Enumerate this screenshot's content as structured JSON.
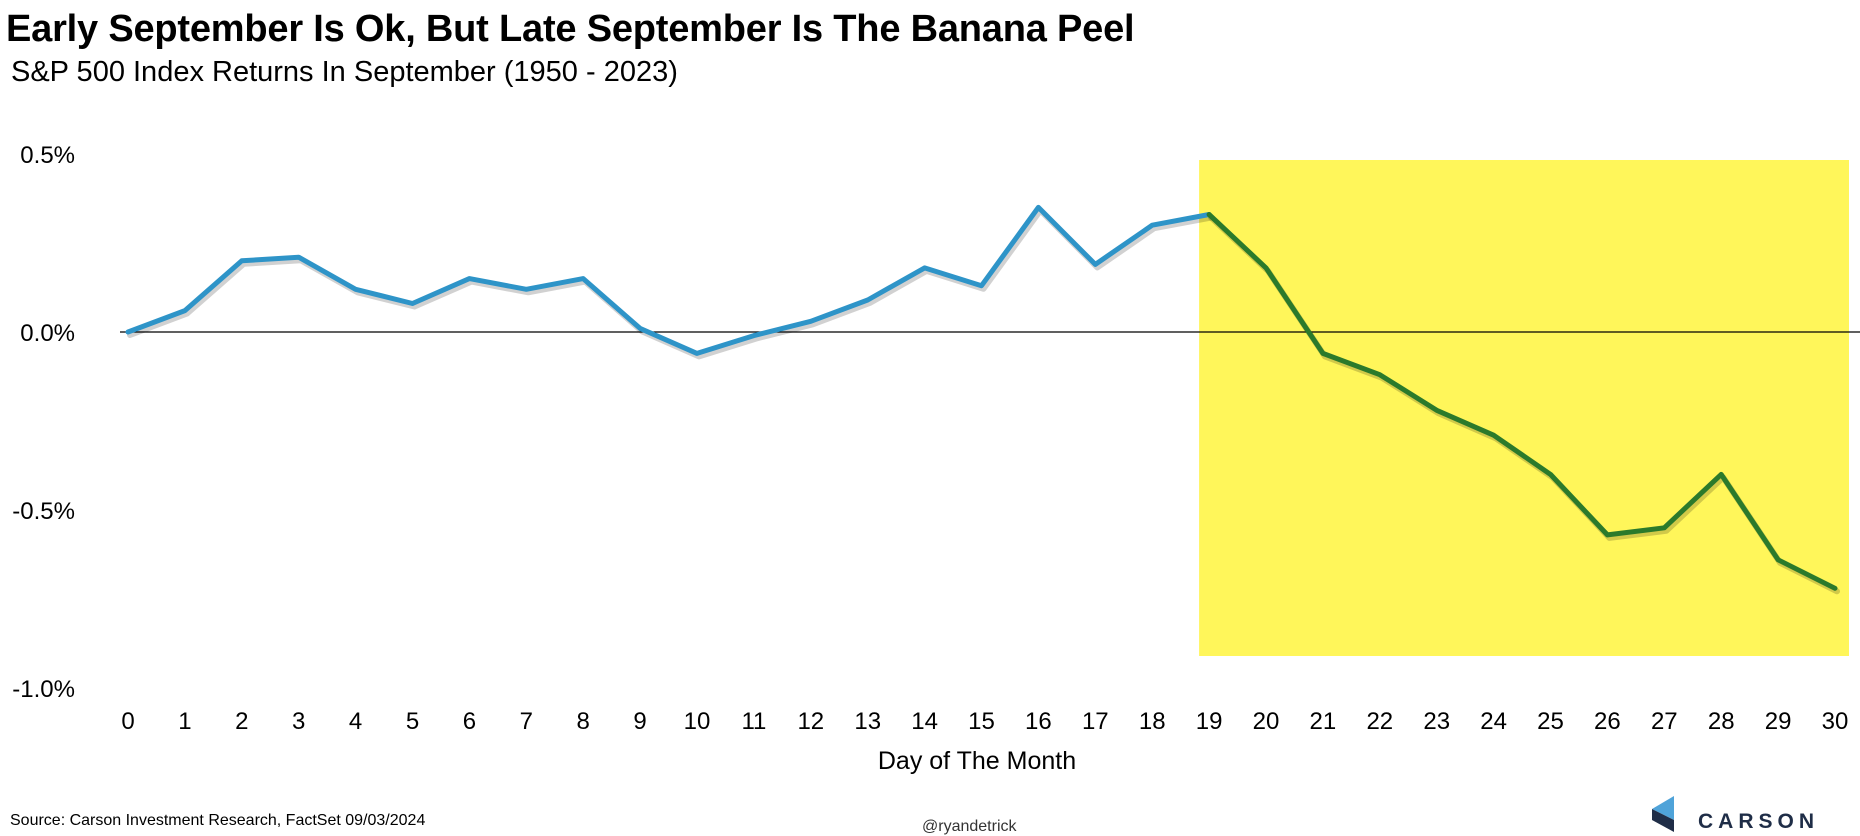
{
  "title": "Early September Is Ok, But Late September Is The Banana Peel",
  "subtitle": "S&P 500 Index Returns In September (1950 - 2023)",
  "source": "Source: Carson Investment Research, FactSet 09/03/2024",
  "handle": "@ryandetrick",
  "logo": {
    "text": "CARSON",
    "icon": "carson-logo-icon"
  },
  "colors": {
    "line_early": "#2e94c8",
    "line_late": "#2b7a2b",
    "highlight": "#fff65a",
    "zero_line": "#000000"
  },
  "chart_data": {
    "type": "line",
    "title": "Early September Is Ok, But Late September Is The Banana Peel",
    "subtitle": "S&P 500 Index Returns In September (1950 - 2023)",
    "xlabel": "Day of The Month",
    "ylabel": "",
    "x": [
      0,
      1,
      2,
      3,
      4,
      5,
      6,
      7,
      8,
      9,
      10,
      11,
      12,
      13,
      14,
      15,
      16,
      17,
      18,
      19,
      20,
      21,
      22,
      23,
      24,
      25,
      26,
      27,
      28,
      29,
      30
    ],
    "values": [
      0.0,
      0.06,
      0.2,
      0.21,
      0.12,
      0.08,
      0.15,
      0.12,
      0.15,
      0.01,
      -0.06,
      -0.01,
      0.03,
      0.09,
      0.18,
      0.13,
      0.35,
      0.19,
      0.3,
      0.33,
      0.18,
      -0.06,
      -0.12,
      -0.22,
      -0.29,
      -0.4,
      -0.57,
      -0.55,
      -0.4,
      -0.64,
      -0.72
    ],
    "ylim": [
      -1.0,
      0.5
    ],
    "yticks": [
      0.5,
      0.0,
      -0.5,
      -1.0
    ],
    "ytick_labels": [
      "0.5%",
      "0.0%",
      "-0.5%",
      "-1.0%"
    ],
    "xtick_labels": [
      "0",
      "1",
      "2",
      "3",
      "4",
      "5",
      "6",
      "7",
      "8",
      "9",
      "10",
      "11",
      "12",
      "13",
      "14",
      "15",
      "16",
      "17",
      "18",
      "19",
      "20",
      "21",
      "22",
      "23",
      "24",
      "25",
      "26",
      "27",
      "28",
      "29",
      "30"
    ],
    "highlight_range": [
      19,
      30
    ],
    "color_change_day": 19,
    "zero_line": true,
    "grid": false,
    "legend": "none"
  }
}
